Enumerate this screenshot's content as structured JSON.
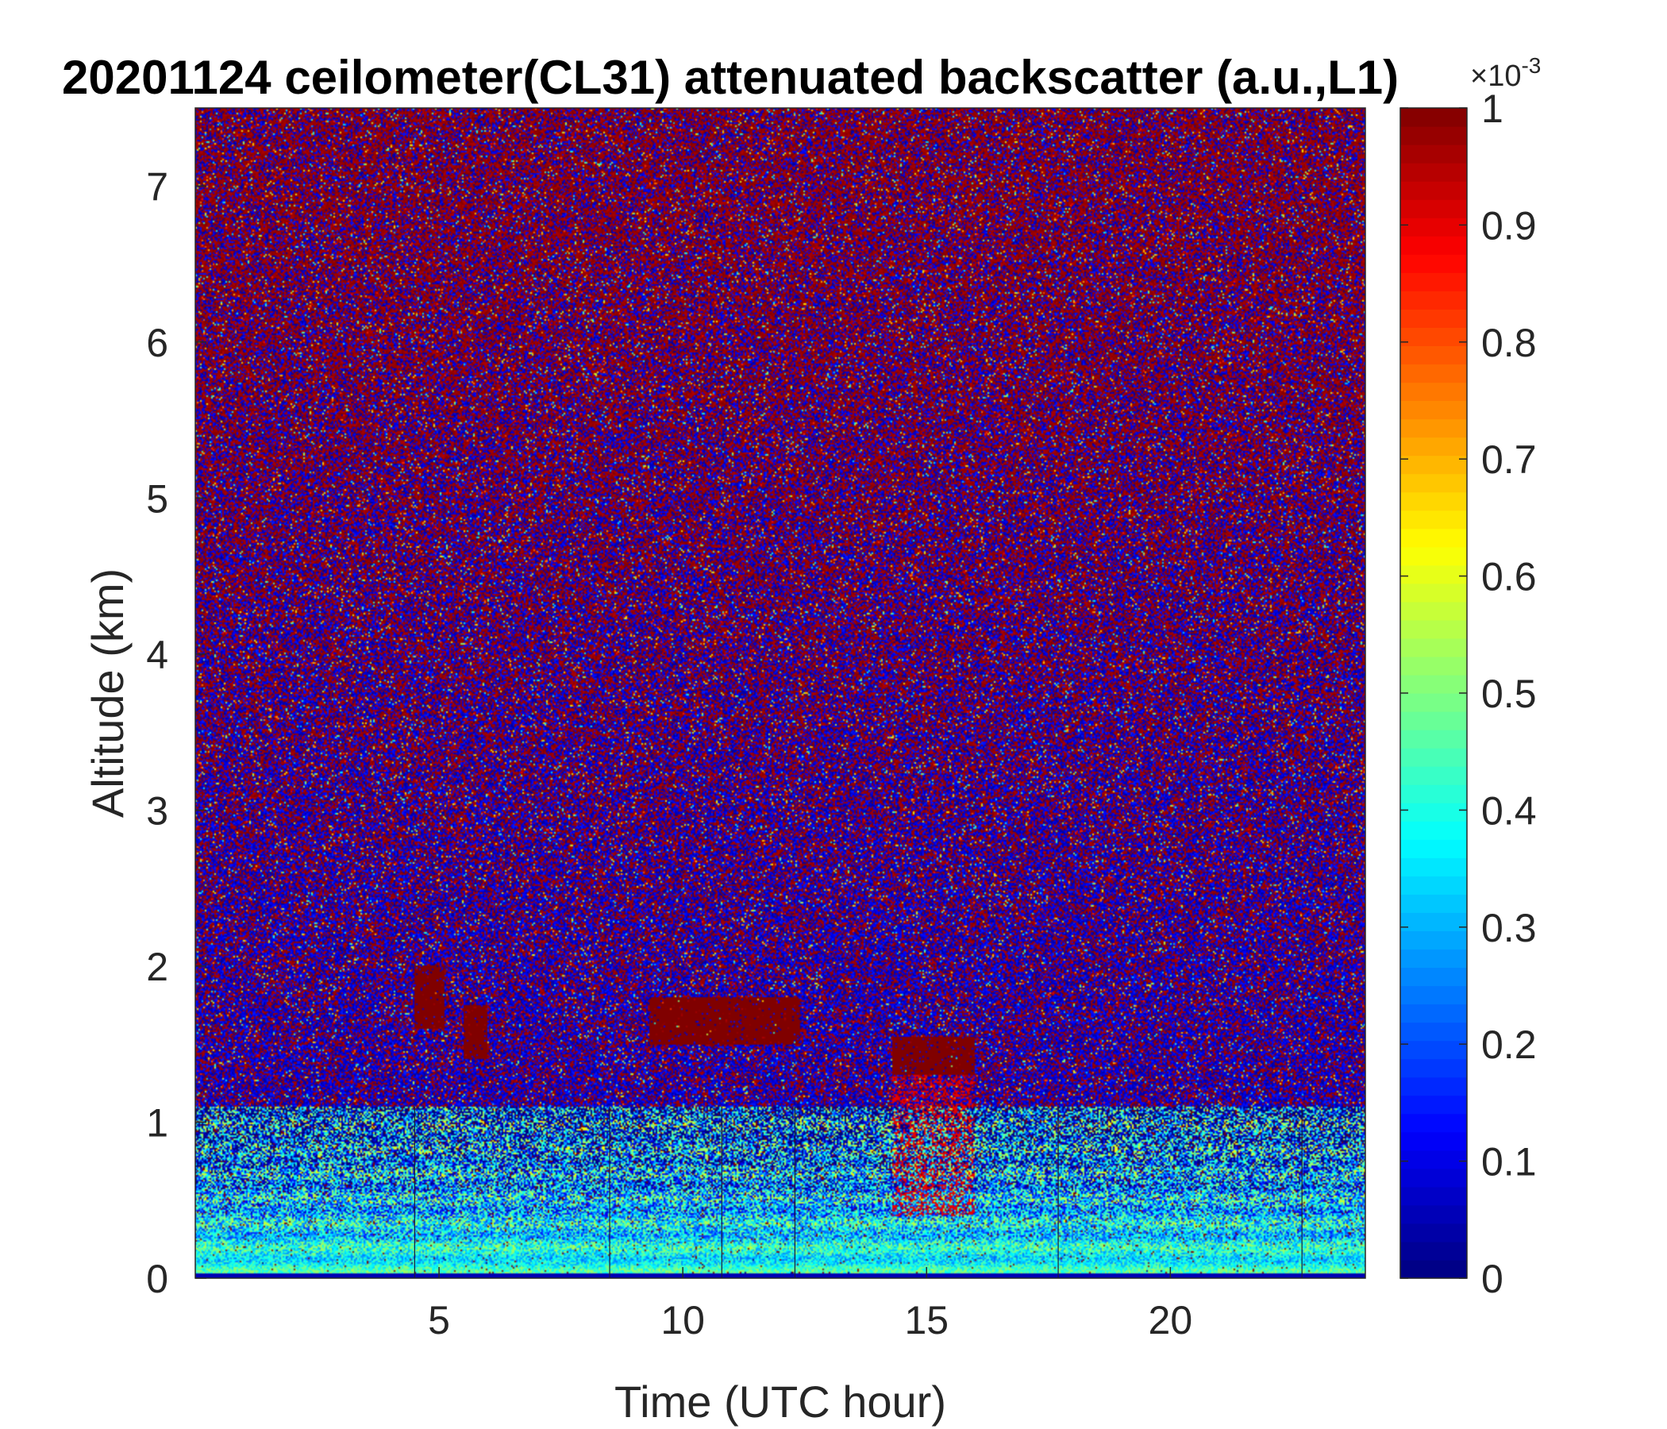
{
  "chart_data": {
    "type": "heatmap",
    "title": "20201124 ceilometer(CL31) attenuated backscatter (a.u.,L1)",
    "xlabel": "Time (UTC hour)",
    "ylabel": "Altitude (km)",
    "xlim": [
      0,
      24
    ],
    "ylim": [
      0,
      7.5
    ],
    "x_ticks": [
      5,
      10,
      15,
      20
    ],
    "y_ticks": [
      0,
      1,
      2,
      3,
      4,
      5,
      6,
      7
    ],
    "colorbar": {
      "colormap": "jet",
      "range": [
        0,
        1
      ],
      "ticks": [
        0,
        0.1,
        0.2,
        0.3,
        0.4,
        0.5,
        0.6,
        0.7,
        0.8,
        0.9,
        1
      ],
      "exponent_base": "×10",
      "exponent_power": "-3"
    },
    "background": {
      "description": "noisy field; high altitudes saturated (dark red/blue speckle), boundary layer below ~1.1 km with values ~0.3-0.5",
      "boundary_layer_top_km": 1.1,
      "near_surface_value": 0.42
    },
    "features": [
      {
        "label": "cloud",
        "x_range": [
          4.5,
          5.1
        ],
        "alt_range_km": [
          1.6,
          2.0
        ],
        "value": 1.0
      },
      {
        "label": "cloud",
        "x_range": [
          5.5,
          6.0
        ],
        "alt_range_km": [
          1.4,
          1.75
        ],
        "value": 1.0
      },
      {
        "label": "cloud",
        "x_range": [
          9.3,
          12.4
        ],
        "alt_range_km": [
          1.5,
          1.8
        ],
        "value": 1.0
      },
      {
        "label": "cloud",
        "x_range": [
          14.3,
          16.0
        ],
        "alt_range_km": [
          1.3,
          1.55
        ],
        "value": 1.0
      },
      {
        "label": "precipitation streaks",
        "x_range": [
          14.3,
          16.0
        ],
        "alt_range_km": [
          0.4,
          1.3
        ],
        "value": 0.9
      }
    ],
    "vertical_lines_x": [
      4.5,
      8.5,
      10.8,
      12.3,
      17.7,
      22.7
    ]
  }
}
